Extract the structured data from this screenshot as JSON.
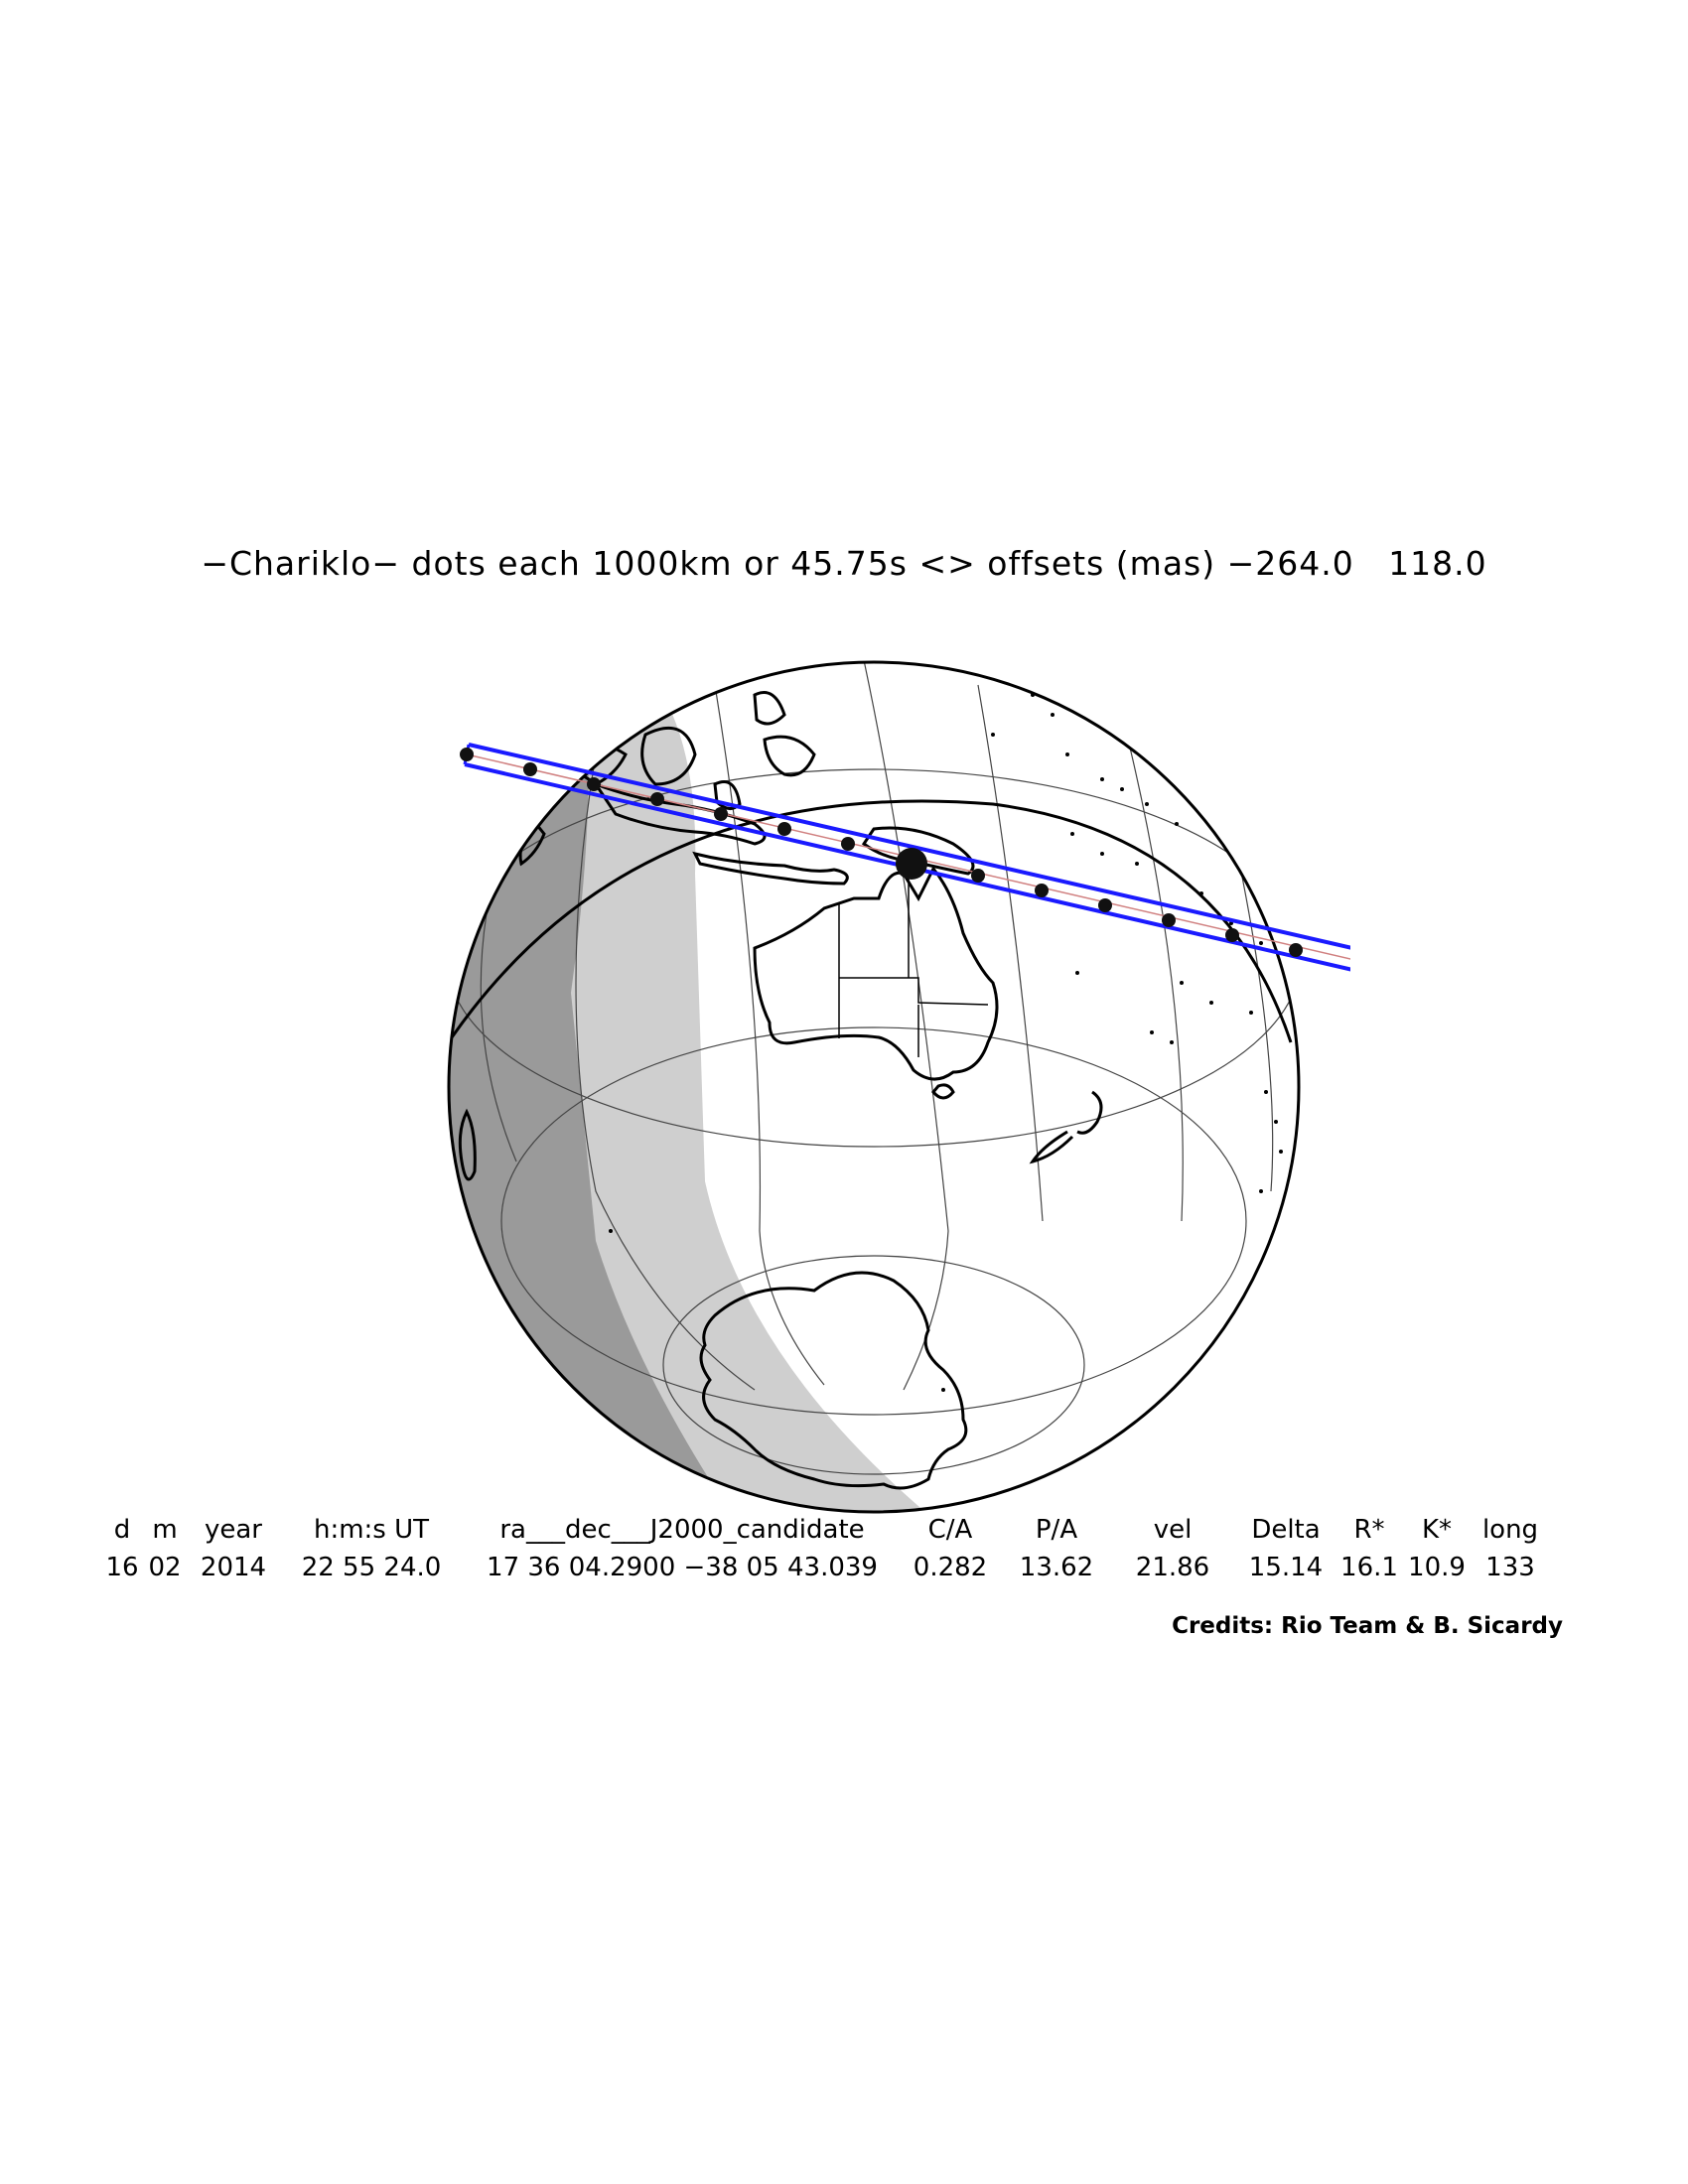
{
  "title": "−Chariklo− dots each 1000km or 45.75s <> offsets (mas) −264.0   118.0",
  "table": {
    "headers": [
      "d",
      "m",
      "year",
      "h:m:s UT",
      "ra___dec___J2000_candidate",
      "C/A",
      "P/A",
      "vel",
      "Delta",
      "R*",
      "K*",
      "long"
    ],
    "values": [
      "16",
      "02",
      "2014",
      "22 55 24.0",
      "17 36 04.2900 −38 05 43.039",
      "0.282",
      "13.62",
      "21.86",
      "15.14",
      "16.1",
      "10.9",
      "133"
    ]
  },
  "credits": "Credits: Rio Team & B. Sicardy",
  "colors": {
    "shadow_path": "#1a1aff",
    "centerline": "#d08080",
    "night": "#9a9a9a",
    "twilight": "#cfcfcf",
    "dots": "#111111"
  }
}
